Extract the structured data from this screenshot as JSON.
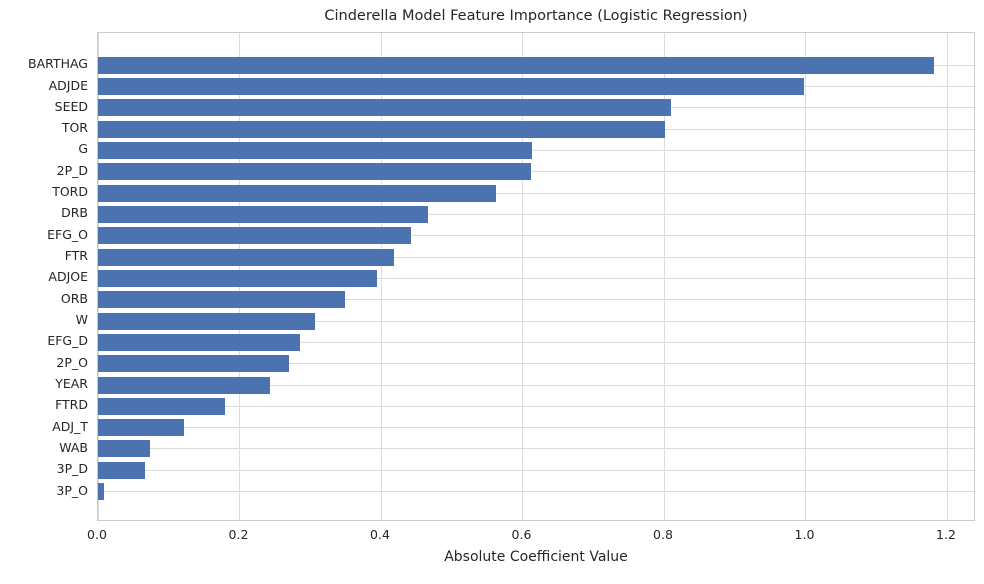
{
  "chart_data": {
    "type": "bar",
    "orientation": "horizontal",
    "title": "Cinderella Model Feature Importance (Logistic Regression)",
    "xlabel": "Absolute Coefficient Value",
    "ylabel": "",
    "categories": [
      "BARTHAG",
      "ADJDE",
      "SEED",
      "TOR",
      "G",
      "2P_D",
      "TORD",
      "DRB",
      "EFG_O",
      "FTR",
      "ADJOE",
      "ORB",
      "W",
      "EFG_D",
      "2P_O",
      "YEAR",
      "FTRD",
      "ADJ_T",
      "WAB",
      "3P_D",
      "3P_O"
    ],
    "values": [
      1.181,
      0.998,
      0.81,
      0.801,
      0.614,
      0.612,
      0.562,
      0.467,
      0.442,
      0.418,
      0.395,
      0.349,
      0.307,
      0.286,
      0.27,
      0.243,
      0.18,
      0.121,
      0.073,
      0.066,
      0.008
    ],
    "xticks": [
      0.0,
      0.2,
      0.4,
      0.6,
      0.8,
      1.0,
      1.2
    ],
    "xlim": [
      0,
      1.241
    ],
    "grid": true,
    "legend": false,
    "colors": {
      "bar": "#4c72b0",
      "grid": "#dcdcdc",
      "spine": "#cccccc",
      "text": "#262626"
    }
  }
}
